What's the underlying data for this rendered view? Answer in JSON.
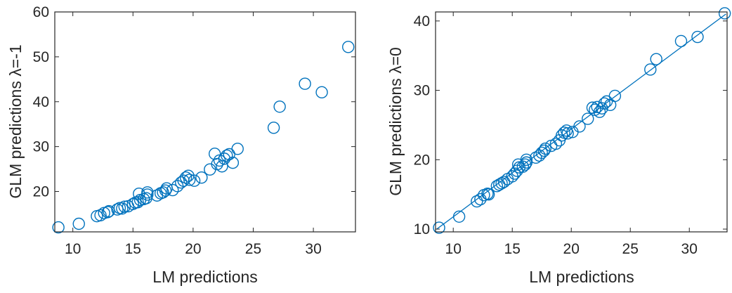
{
  "colors": {
    "marker": "#0072BD",
    "axis": "#262626",
    "background": "#ffffff"
  },
  "chart_data": [
    {
      "type": "scatter",
      "xlabel": "LM predictions",
      "ylabel": "GLM predictions λ=-1",
      "xlim": [
        8.5,
        33.5
      ],
      "ylim": [
        11,
        60
      ],
      "xticks": [
        10,
        15,
        20,
        25,
        30
      ],
      "yticks": [
        20,
        30,
        40,
        50,
        60
      ],
      "grid": false,
      "marker": "open-circle",
      "points": [
        [
          8.8,
          12.0
        ],
        [
          10.5,
          12.8
        ],
        [
          12.0,
          14.5
        ],
        [
          12.3,
          14.7
        ],
        [
          12.6,
          15.2
        ],
        [
          12.9,
          15.4
        ],
        [
          13.0,
          15.6
        ],
        [
          13.7,
          16.0
        ],
        [
          13.9,
          16.3
        ],
        [
          14.1,
          16.2
        ],
        [
          14.3,
          16.6
        ],
        [
          14.6,
          16.7
        ],
        [
          15.0,
          17.2
        ],
        [
          15.2,
          17.5
        ],
        [
          15.4,
          17.6
        ],
        [
          15.6,
          18.1
        ],
        [
          15.5,
          19.5
        ],
        [
          15.9,
          18.3
        ],
        [
          16.1,
          18.5
        ],
        [
          16.2,
          19.3
        ],
        [
          16.2,
          19.8
        ],
        [
          17.0,
          19.1
        ],
        [
          17.3,
          19.6
        ],
        [
          17.5,
          19.8
        ],
        [
          17.7,
          20.2
        ],
        [
          17.8,
          20.7
        ],
        [
          18.3,
          20.3
        ],
        [
          18.7,
          21.2
        ],
        [
          19.0,
          22.0
        ],
        [
          19.2,
          22.4
        ],
        [
          19.4,
          23.1
        ],
        [
          19.6,
          23.5
        ],
        [
          19.7,
          22.6
        ],
        [
          20.1,
          22.4
        ],
        [
          20.7,
          23.1
        ],
        [
          21.4,
          24.9
        ],
        [
          21.8,
          28.4
        ],
        [
          22.0,
          26.1
        ],
        [
          22.2,
          26.9
        ],
        [
          22.4,
          25.6
        ],
        [
          22.6,
          27.3
        ],
        [
          22.8,
          28.0
        ],
        [
          23.0,
          28.3
        ],
        [
          23.3,
          26.4
        ],
        [
          23.7,
          29.5
        ],
        [
          26.7,
          34.2
        ],
        [
          27.2,
          38.9
        ],
        [
          29.3,
          44.0
        ],
        [
          30.7,
          42.1
        ],
        [
          32.9,
          52.2
        ]
      ]
    },
    {
      "type": "scatter",
      "xlabel": "LM predictions",
      "ylabel": "GLM predictions λ=0",
      "xlim": [
        8.5,
        33.2
      ],
      "ylim": [
        9.6,
        41.3
      ],
      "xticks": [
        10,
        15,
        20,
        25,
        30
      ],
      "yticks": [
        10,
        20,
        30,
        40
      ],
      "grid": false,
      "marker": "open-circle",
      "reference_line": {
        "x": [
          8.6,
          33.1
        ],
        "y": [
          10.0,
          41.0
        ]
      },
      "points": [
        [
          8.8,
          10.2
        ],
        [
          10.5,
          11.8
        ],
        [
          12.0,
          14.0
        ],
        [
          12.3,
          14.3
        ],
        [
          12.6,
          14.9
        ],
        [
          12.9,
          15.1
        ],
        [
          13.0,
          15.0
        ],
        [
          13.7,
          16.2
        ],
        [
          13.9,
          16.4
        ],
        [
          14.1,
          16.6
        ],
        [
          14.3,
          16.8
        ],
        [
          14.6,
          17.2
        ],
        [
          15.0,
          17.6
        ],
        [
          15.2,
          18.0
        ],
        [
          15.4,
          18.4
        ],
        [
          15.6,
          18.9
        ],
        [
          15.5,
          19.3
        ],
        [
          15.9,
          19.0
        ],
        [
          16.1,
          19.3
        ],
        [
          16.2,
          19.6
        ],
        [
          16.2,
          20.0
        ],
        [
          17.0,
          20.3
        ],
        [
          17.3,
          20.6
        ],
        [
          17.5,
          21.0
        ],
        [
          17.7,
          21.3
        ],
        [
          17.8,
          21.6
        ],
        [
          18.3,
          22.0
        ],
        [
          18.7,
          22.3
        ],
        [
          19.0,
          22.8
        ],
        [
          19.2,
          23.5
        ],
        [
          19.4,
          23.9
        ],
        [
          19.6,
          24.2
        ],
        [
          19.7,
          23.8
        ],
        [
          20.1,
          24.0
        ],
        [
          20.7,
          24.8
        ],
        [
          21.4,
          25.9
        ],
        [
          21.8,
          27.5
        ],
        [
          22.0,
          27.2
        ],
        [
          22.2,
          27.6
        ],
        [
          22.4,
          26.9
        ],
        [
          22.6,
          27.4
        ],
        [
          22.8,
          28.1
        ],
        [
          23.0,
          28.4
        ],
        [
          23.3,
          27.9
        ],
        [
          23.7,
          29.2
        ],
        [
          26.7,
          33.0
        ],
        [
          27.2,
          34.5
        ],
        [
          29.3,
          37.1
        ],
        [
          30.7,
          37.7
        ],
        [
          33.0,
          41.1
        ]
      ]
    }
  ]
}
